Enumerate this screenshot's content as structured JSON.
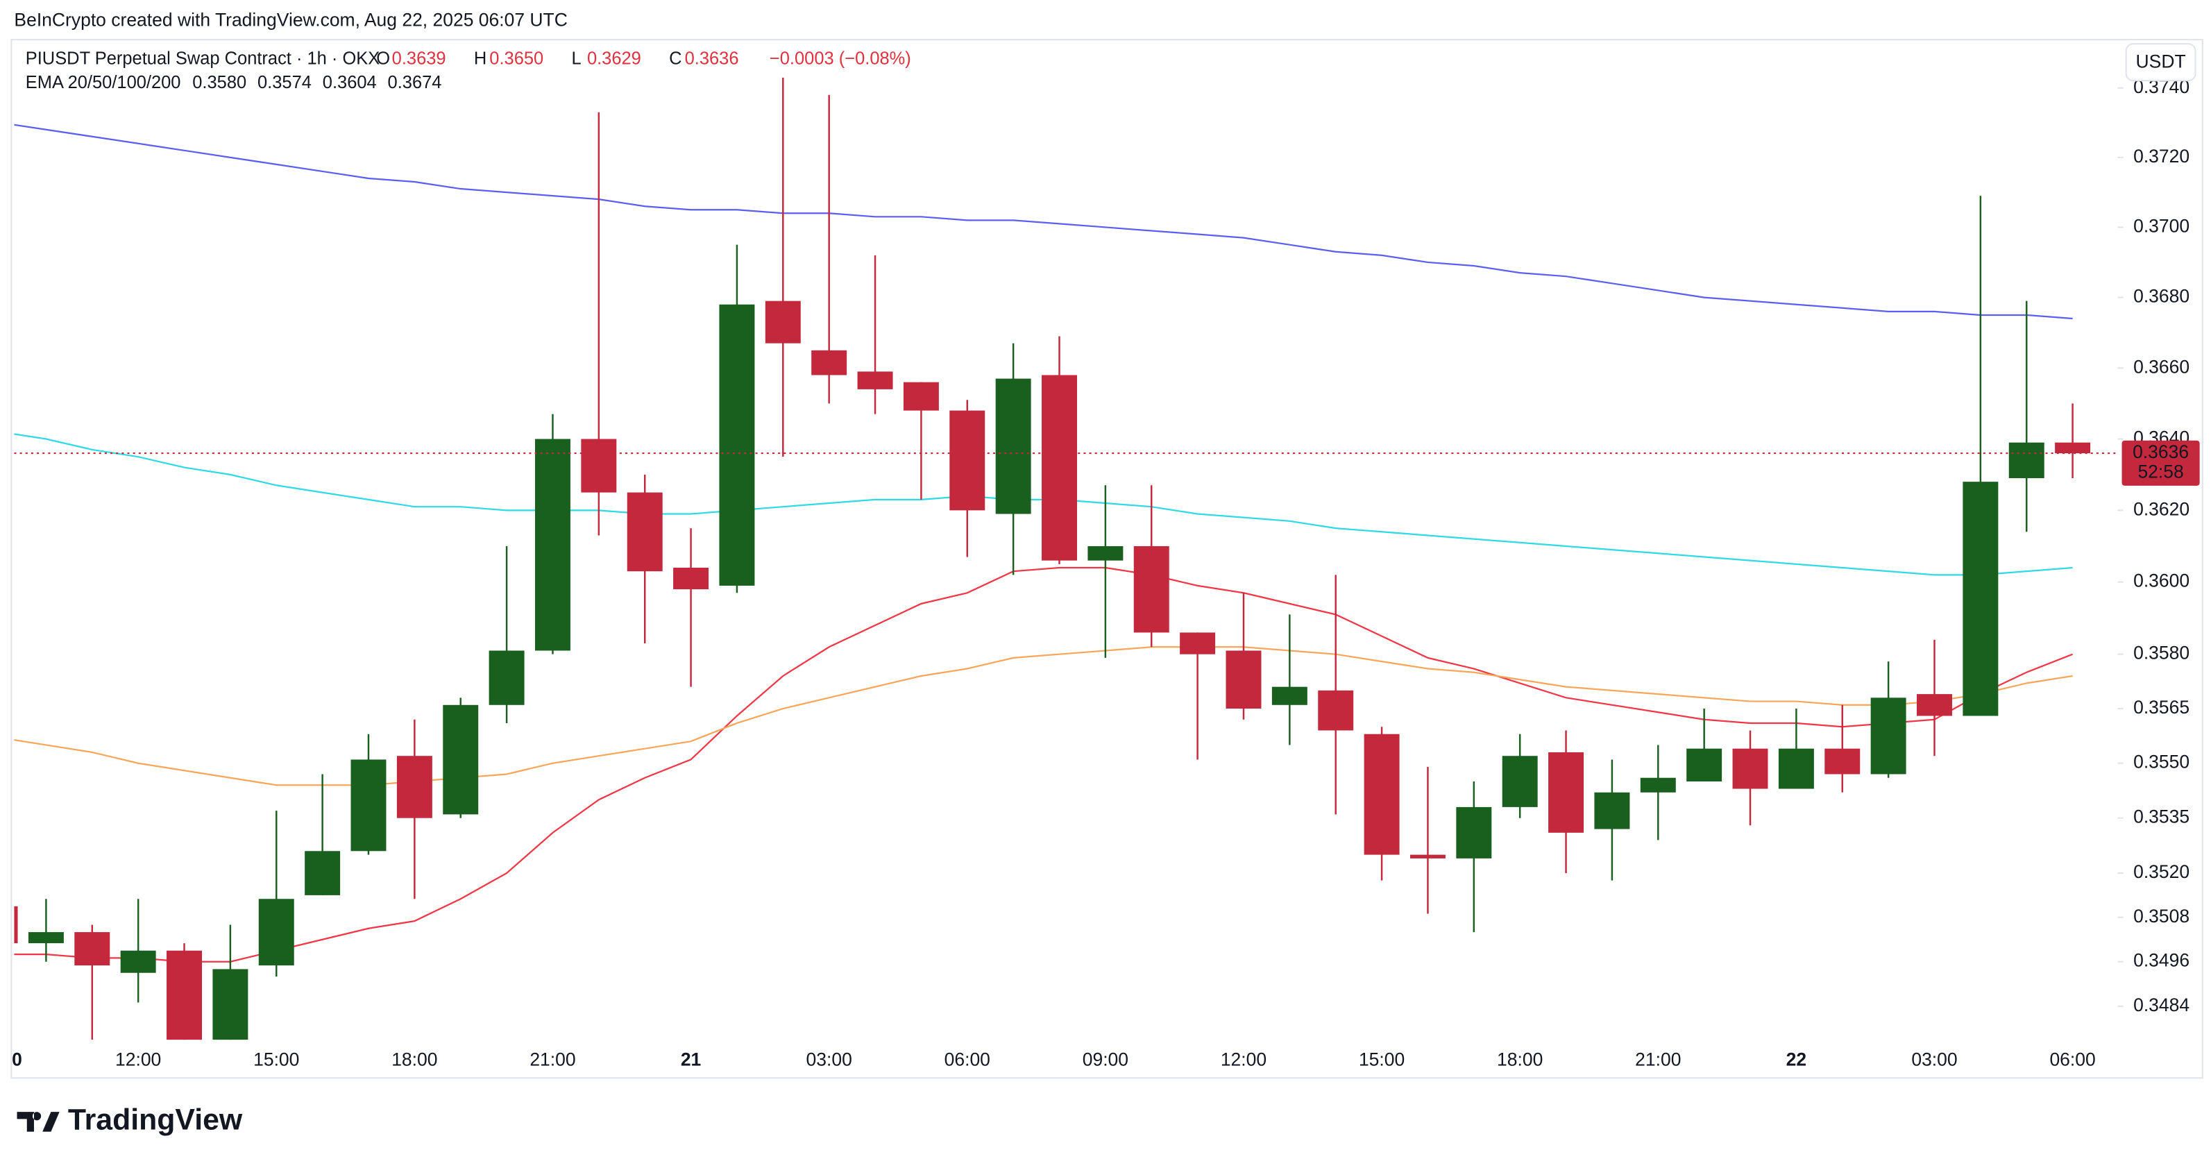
{
  "header": {
    "credit": "BeInCrypto created with TradingView.com, Aug 22, 2025 06:07 UTC"
  },
  "legend": {
    "symbol": "PIUSDT Perpetual Swap Contract · 1h · OKX",
    "ohlc": [
      {
        "label": "O",
        "value": "0.3639"
      },
      {
        "label": "H",
        "value": "0.3650"
      },
      {
        "label": "L",
        "value": "0.3629"
      },
      {
        "label": "C",
        "value": "0.3636"
      }
    ],
    "change": "−0.0003 (−0.08%)",
    "indicator": "EMA 20/50/100/200",
    "indicator_values": [
      "0.3580",
      "0.3574",
      "0.3604",
      "0.3674"
    ]
  },
  "chart_data": {
    "type": "candlestick",
    "currency": "USDT",
    "log_scale": true,
    "up_color": "#19601f",
    "down_color": "#c4283c",
    "categories": [
      "0",
      null,
      null,
      "12:00",
      null,
      null,
      "15:00",
      null,
      null,
      "18:00",
      null,
      null,
      "21:00",
      null,
      null,
      "21",
      null,
      null,
      "03:00",
      null,
      null,
      "06:00",
      null,
      null,
      "09:00",
      null,
      null,
      "12:00",
      null,
      null,
      "15:00",
      null,
      null,
      "18:00",
      null,
      null,
      "21:00",
      null,
      null,
      "22",
      null,
      null,
      "03:00",
      null,
      null,
      "06:00"
    ],
    "open": [
      0.3511,
      0.3501,
      0.3504,
      0.3493,
      0.3499,
      0.347,
      0.3495,
      0.3514,
      0.3526,
      0.3552,
      0.3536,
      0.3566,
      0.3581,
      0.364,
      0.3625,
      0.3604,
      0.3599,
      0.3679,
      0.3665,
      0.3659,
      0.3656,
      0.3648,
      0.3619,
      0.3658,
      0.3606,
      0.361,
      0.3586,
      0.3581,
      0.3566,
      0.357,
      0.3558,
      0.3525,
      0.3524,
      0.3538,
      0.3553,
      0.3532,
      0.3542,
      0.3545,
      0.3554,
      0.3543,
      0.3554,
      0.3547,
      0.3569,
      0.3563,
      0.3629,
      0.3639
    ],
    "high": [
      0.3512,
      0.3513,
      0.3506,
      0.3513,
      0.3501,
      0.3506,
      0.3537,
      0.3547,
      0.3558,
      0.3562,
      0.3568,
      0.361,
      0.3647,
      0.3733,
      0.363,
      0.3615,
      0.3695,
      0.3743,
      0.3738,
      0.3692,
      0.3656,
      0.3651,
      0.3667,
      0.3669,
      0.3627,
      0.3627,
      0.3586,
      0.3597,
      0.3591,
      0.3602,
      0.356,
      0.3549,
      0.3545,
      0.3558,
      0.3559,
      0.3551,
      0.3555,
      0.3565,
      0.3559,
      0.3565,
      0.3566,
      0.3578,
      0.3584,
      0.3709,
      0.3679,
      0.365
    ],
    "low": [
      0.35,
      0.3496,
      0.3475,
      0.3485,
      0.3465,
      0.3462,
      0.3492,
      0.3514,
      0.3525,
      0.3513,
      0.3535,
      0.3561,
      0.358,
      0.3613,
      0.3583,
      0.3571,
      0.3597,
      0.3635,
      0.365,
      0.3647,
      0.3623,
      0.3607,
      0.3602,
      0.3605,
      0.3579,
      0.3582,
      0.3551,
      0.3562,
      0.3555,
      0.3536,
      0.3518,
      0.3509,
      0.3504,
      0.3535,
      0.352,
      0.3518,
      0.3529,
      0.3545,
      0.3533,
      0.3543,
      0.3542,
      0.3546,
      0.3552,
      0.3563,
      0.3614,
      0.3629
    ],
    "close": [
      0.3501,
      0.3504,
      0.3495,
      0.3499,
      0.3472,
      0.3494,
      0.3513,
      0.3526,
      0.3551,
      0.3535,
      0.3566,
      0.3581,
      0.364,
      0.3625,
      0.3603,
      0.3598,
      0.3678,
      0.3667,
      0.3658,
      0.3654,
      0.3648,
      0.362,
      0.3657,
      0.3606,
      0.361,
      0.3586,
      0.358,
      0.3565,
      0.3571,
      0.3559,
      0.3525,
      0.3524,
      0.3538,
      0.3552,
      0.3531,
      0.3542,
      0.3546,
      0.3554,
      0.3543,
      0.3554,
      0.3547,
      0.3568,
      0.3563,
      0.3628,
      0.3639,
      0.3636
    ],
    "lines": [
      {
        "color": "#f23645",
        "values": [
          0.3498,
          0.3498,
          0.3497,
          0.3497,
          0.3496,
          0.3496,
          0.3499,
          0.3502,
          0.3505,
          0.3507,
          0.3513,
          0.352,
          0.3531,
          0.354,
          0.3546,
          0.3551,
          0.3563,
          0.3574,
          0.3582,
          0.3588,
          0.3594,
          0.3597,
          0.3603,
          0.3604,
          0.3604,
          0.3602,
          0.3599,
          0.3597,
          0.3594,
          0.3591,
          0.3585,
          0.3579,
          0.3576,
          0.3572,
          0.3568,
          0.3566,
          0.3564,
          0.3562,
          0.3561,
          0.3561,
          0.356,
          0.3561,
          0.3562,
          0.3569,
          0.3575,
          0.358
        ]
      },
      {
        "color": "#f7a65a",
        "values": [
          0.3557,
          0.3555,
          0.3553,
          0.355,
          0.3548,
          0.3546,
          0.3544,
          0.3544,
          0.3544,
          0.3545,
          0.3546,
          0.3547,
          0.355,
          0.3552,
          0.3554,
          0.3556,
          0.3561,
          0.3565,
          0.3568,
          0.3571,
          0.3574,
          0.3576,
          0.3579,
          0.358,
          0.3581,
          0.3582,
          0.3582,
          0.3582,
          0.3581,
          0.358,
          0.3578,
          0.3576,
          0.3575,
          0.3573,
          0.3571,
          0.357,
          0.3569,
          0.3568,
          0.3567,
          0.3567,
          0.3566,
          0.3566,
          0.3567,
          0.3569,
          0.3572,
          0.3574
        ]
      },
      {
        "color": "#2fd9e6",
        "values": [
          0.3642,
          0.364,
          0.3637,
          0.3635,
          0.3632,
          0.363,
          0.3627,
          0.3625,
          0.3623,
          0.3621,
          0.3621,
          0.362,
          0.362,
          0.362,
          0.3619,
          0.3619,
          0.362,
          0.3621,
          0.3622,
          0.3623,
          0.3623,
          0.3624,
          0.3623,
          0.3623,
          0.3622,
          0.3621,
          0.3619,
          0.3618,
          0.3617,
          0.3615,
          0.3614,
          0.3613,
          0.3612,
          0.3611,
          0.361,
          0.3609,
          0.3608,
          0.3607,
          0.3606,
          0.3605,
          0.3604,
          0.3603,
          0.3602,
          0.3602,
          0.3603,
          0.3604
        ]
      },
      {
        "color": "#5b5ef0",
        "values": [
          0.373,
          0.3728,
          0.3726,
          0.3724,
          0.3722,
          0.372,
          0.3718,
          0.3716,
          0.3714,
          0.3713,
          0.3711,
          0.371,
          0.3709,
          0.3708,
          0.3706,
          0.3705,
          0.3705,
          0.3704,
          0.3704,
          0.3703,
          0.3703,
          0.3702,
          0.3702,
          0.3701,
          0.37,
          0.3699,
          0.3698,
          0.3697,
          0.3695,
          0.3693,
          0.3692,
          0.369,
          0.3689,
          0.3687,
          0.3686,
          0.3684,
          0.3682,
          0.368,
          0.3679,
          0.3678,
          0.3677,
          0.3676,
          0.3676,
          0.3675,
          0.3675,
          0.3674
        ]
      }
    ],
    "countdown": "52:58",
    "ylim": [
      0.3475,
      0.3754
    ],
    "yticks": [
      {
        "value": 0.374,
        "label": "0.3740"
      },
      {
        "value": 0.372,
        "label": "0.3720"
      },
      {
        "value": 0.37,
        "label": "0.3700"
      },
      {
        "value": 0.368,
        "label": "0.3680"
      },
      {
        "value": 0.366,
        "label": "0.3660"
      },
      {
        "value": 0.364,
        "label": "0.3640"
      },
      {
        "value": 0.362,
        "label": "0.3620"
      },
      {
        "value": 0.36,
        "label": "0.3600"
      },
      {
        "value": 0.358,
        "label": "0.3580"
      },
      0.3565,
      {
        "value": 0.355,
        "label": "0.3550"
      },
      0.3535,
      {
        "value": 0.352,
        "label": "0.3520"
      },
      0.3508,
      0.3496,
      0.3484
    ]
  },
  "footer": {
    "brand": "TradingView"
  }
}
